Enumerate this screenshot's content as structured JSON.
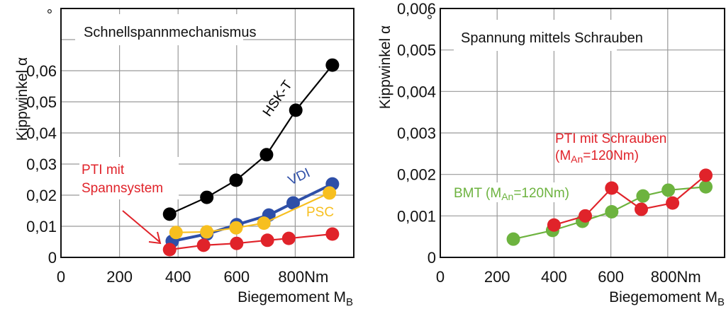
{
  "chart_data": [
    {
      "type": "line",
      "title": "Schnellspannmechanismus",
      "xlabel": "Biegemoment M",
      "xlabel_sub": "B",
      "ylabel": "Kippwinkel α",
      "yunit": "°",
      "xlim": [
        0,
        1000
      ],
      "ylim": [
        0,
        0.08
      ],
      "xticks": [
        0,
        200,
        400,
        600,
        800
      ],
      "xtick_labels": [
        "0",
        "200",
        "400",
        "600",
        "800Nm"
      ],
      "yticks": [
        0,
        0.01,
        0.02,
        0.03,
        0.04,
        0.05,
        0.06,
        0.07
      ],
      "ytick_labels": [
        "0",
        "0,01",
        "0,02",
        "0,03",
        "0,04",
        "0,05",
        "0,06",
        ""
      ],
      "grid": true,
      "series": [
        {
          "name": "HSK-T",
          "color": "#000000",
          "x": [
            371,
            498,
            598,
            702,
            802,
            927
          ],
          "y": [
            0.0139,
            0.0193,
            0.0248,
            0.033,
            0.0473,
            0.0618
          ]
        },
        {
          "name": "VDI",
          "color": "#2e4fa8",
          "x": [
            380,
            498,
            600,
            710,
            793,
            927
          ],
          "y": [
            0.0052,
            0.0075,
            0.0105,
            0.0136,
            0.0175,
            0.0236
          ]
        },
        {
          "name": "PSC",
          "color": "#f7bf1f",
          "x": [
            393,
            498,
            598,
            693,
            917
          ],
          "y": [
            0.008,
            0.0082,
            0.0095,
            0.011,
            0.0207
          ]
        },
        {
          "name": "PTI mit Spannsystem",
          "color": "#e0232a",
          "x": [
            371,
            487,
            600,
            705,
            778,
            927
          ],
          "y": [
            0.0025,
            0.0039,
            0.0045,
            0.0055,
            0.0061,
            0.0075
          ]
        }
      ],
      "annotations": [
        {
          "text": "HSK-T",
          "color": "#000000",
          "series": "HSK-T"
        },
        {
          "text": "VDI",
          "color": "#2e4fa8",
          "series": "VDI"
        },
        {
          "text": "PSC",
          "color": "#f7bf1f",
          "series": "PSC"
        },
        {
          "lines": [
            "PTI mit",
            "Spannsystem"
          ],
          "color": "#e0232a",
          "series": "PTI mit Spannsystem",
          "arrow": true
        }
      ]
    },
    {
      "type": "line",
      "title": "Spannung  mittels Schrauben",
      "xlabel": "Biegemoment M",
      "xlabel_sub": "B",
      "ylabel": "Kippwinkel α",
      "yunit": "°",
      "xlim": [
        0,
        1000
      ],
      "ylim": [
        0,
        0.006
      ],
      "xticks": [
        0,
        200,
        400,
        600,
        800
      ],
      "xtick_labels": [
        "0",
        "200",
        "400",
        "600",
        "800Nm"
      ],
      "yticks": [
        0,
        0.001,
        0.002,
        0.003,
        0.004,
        0.005,
        0.006
      ],
      "ytick_labels": [
        "0",
        "0,001",
        "0,002",
        "0,003",
        "0,004",
        "0,005",
        "0,006"
      ],
      "grid": true,
      "series": [
        {
          "name": "BMT (MAn=120Nm)",
          "color": "#6db33f",
          "x": [
            257,
            395,
            500,
            603,
            713,
            802,
            934
          ],
          "y": [
            0.00044,
            0.00065,
            0.00087,
            0.0011,
            0.00148,
            0.00162,
            0.0017
          ]
        },
        {
          "name": "PTI mit Schrauben (MAn=120Nm)",
          "color": "#e0232a",
          "x": [
            400,
            510,
            603,
            707,
            817,
            934
          ],
          "y": [
            0.00078,
            0.001,
            0.00167,
            0.00116,
            0.00131,
            0.00198
          ]
        }
      ],
      "annotations": [
        {
          "parts": [
            "BMT (M",
            "An",
            "=120Nm)"
          ],
          "color": "#6db33f",
          "series": "BMT (MAn=120Nm)"
        },
        {
          "lines": [
            "PTI mit Schrauben"
          ],
          "parts": [
            "(M",
            "An",
            "=120Nm)"
          ],
          "color": "#e0232a",
          "series": "PTI mit Schrauben (MAn=120Nm)"
        }
      ]
    }
  ]
}
